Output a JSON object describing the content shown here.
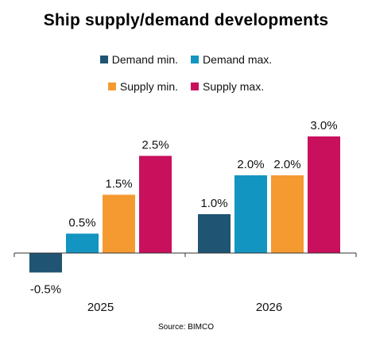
{
  "colors": {
    "demand_min": "#1f5472",
    "demand_max": "#1295c0",
    "supply_min": "#f59a31",
    "supply_max": "#c8105d",
    "axis": "#333333",
    "label": "#111111"
  },
  "chart_data": {
    "type": "bar",
    "title": "Ship supply/demand developments",
    "categories": [
      "2025",
      "2026"
    ],
    "series": [
      {
        "name": "Demand min.",
        "color_key": "demand_min",
        "values": [
          -0.5,
          1.0
        ],
        "labels": [
          "-0.5%",
          "1.0%"
        ]
      },
      {
        "name": "Demand max.",
        "color_key": "demand_max",
        "values": [
          0.5,
          2.0
        ],
        "labels": [
          "0.5%",
          "2.0%"
        ]
      },
      {
        "name": "Supply min.",
        "color_key": "supply_min",
        "values": [
          1.5,
          2.0
        ],
        "labels": [
          "1.5%",
          "2.0%"
        ]
      },
      {
        "name": "Supply max.",
        "color_key": "supply_max",
        "values": [
          2.5,
          3.0
        ],
        "labels": [
          "2.5%",
          "3.0%"
        ]
      }
    ],
    "legend": {
      "position": "top",
      "rows": [
        [
          "Demand min.",
          "Demand max."
        ],
        [
          "Supply min.",
          "Supply max."
        ]
      ]
    },
    "grid": false,
    "xlabel": "",
    "ylabel": "",
    "source": "Source: BIMCO"
  }
}
